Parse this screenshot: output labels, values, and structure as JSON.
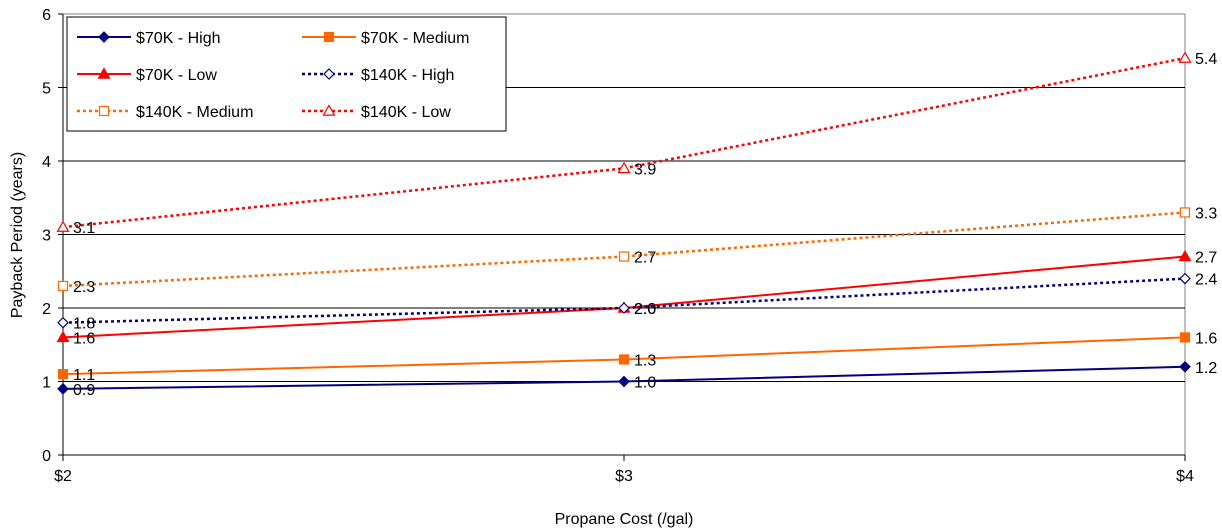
{
  "chart_data": {
    "type": "line",
    "title": "",
    "xlabel": "Propane Cost (/gal)",
    "ylabel": "Payback Period (years)",
    "categories": [
      "$2",
      "$3",
      "$4"
    ],
    "ylim": [
      0,
      6
    ],
    "yticks": [
      "0",
      "1",
      "2",
      "3",
      "4",
      "5",
      "6"
    ],
    "grid": "horizontal major gridlines",
    "legend_position": "top-left inside plot",
    "series": [
      {
        "name": "$70K - High",
        "values": [
          0.9,
          1.0,
          1.2
        ],
        "labels": [
          "0.9",
          "1.0",
          "1.2"
        ],
        "color": "#000080",
        "dash": "solid",
        "marker": "diamond-filled"
      },
      {
        "name": "$70K - Medium",
        "values": [
          1.1,
          1.3,
          1.6
        ],
        "labels": [
          "1.1",
          "1.3",
          "1.6"
        ],
        "color": "#ff6600",
        "dash": "solid",
        "marker": "square-filled"
      },
      {
        "name": "$70K - Low",
        "values": [
          1.6,
          2.0,
          2.7
        ],
        "labels": [
          "1.6",
          "2.0",
          "2.7"
        ],
        "color": "#ff0000",
        "dash": "solid",
        "marker": "triangle-filled"
      },
      {
        "name": "$140K - High",
        "values": [
          1.8,
          2.0,
          2.4
        ],
        "labels": [
          "1.8",
          "2.0",
          "2.4"
        ],
        "color": "#000080",
        "dash": "dotted",
        "marker": "diamond-open"
      },
      {
        "name": "$140K - Medium",
        "values": [
          2.3,
          2.7,
          3.3
        ],
        "labels": [
          "2.3",
          "2.7",
          "3.3"
        ],
        "color": "#ff6600",
        "dash": "dotted",
        "marker": "square-open"
      },
      {
        "name": "$140K - Low",
        "values": [
          3.1,
          3.9,
          5.4
        ],
        "labels": [
          "3.1",
          "3.9",
          "5.4"
        ],
        "color": "#ff0000",
        "dash": "dotted",
        "marker": "triangle-open"
      }
    ]
  }
}
